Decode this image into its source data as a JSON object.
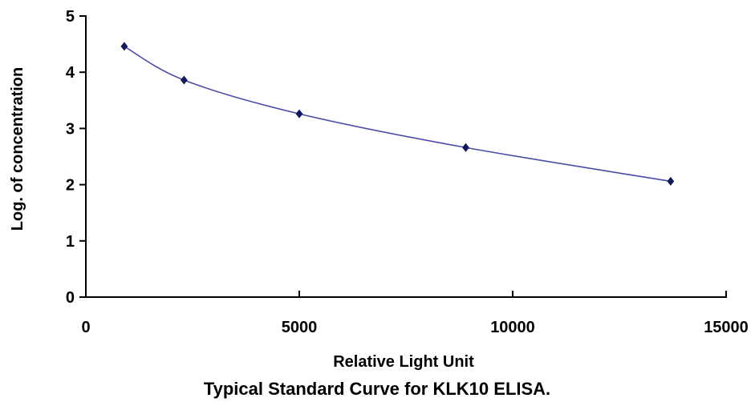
{
  "chart_data": {
    "type": "scatter",
    "title": "Typical Standard Curve for KLK10 ELISA.",
    "xlabel": "Relative Light Unit",
    "ylabel": "Log. of concentration",
    "xlim": [
      0,
      15000
    ],
    "ylim": [
      0,
      5
    ],
    "x_ticks": [
      "0",
      "5000",
      "10000",
      "15000"
    ],
    "y_ticks": [
      "0",
      "1",
      "2",
      "3",
      "4",
      "5"
    ],
    "grid": false,
    "legend": "none",
    "series": [
      {
        "x": [
          900,
          2300,
          5000,
          8900,
          13700
        ],
        "y": [
          4.46,
          3.86,
          3.26,
          2.66,
          2.06
        ],
        "marker": "diamond",
        "trendline": "smooth curve"
      }
    ],
    "colors": {
      "line": "#4a4aa8",
      "marker": "#0f1a5c",
      "axis": "#000000"
    }
  }
}
